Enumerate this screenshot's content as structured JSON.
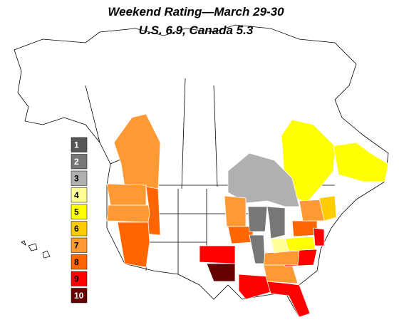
{
  "title": "Weekend Rating—March 29-30",
  "subtitle": "U.S. 6.9, Canada 5.3",
  "scale": [
    {
      "value": 1,
      "color": "#555555"
    },
    {
      "value": 2,
      "color": "#777777"
    },
    {
      "value": 3,
      "color": "#b0b0b0"
    },
    {
      "value": 4,
      "color": "#ffff99"
    },
    {
      "value": 5,
      "color": "#ffff00"
    },
    {
      "value": 6,
      "color": "#ffcc00"
    },
    {
      "value": 7,
      "color": "#ff9933"
    },
    {
      "value": 8,
      "color": "#ff6600"
    },
    {
      "value": 9,
      "color": "#ff0000"
    },
    {
      "value": 10,
      "color": "#660000"
    }
  ],
  "regions": [
    7,
    5,
    5,
    3,
    7,
    7,
    8,
    8,
    7,
    8,
    2,
    2,
    2,
    9,
    10,
    9,
    9,
    7,
    9,
    7,
    5,
    8,
    7,
    6,
    9,
    4
  ]
}
